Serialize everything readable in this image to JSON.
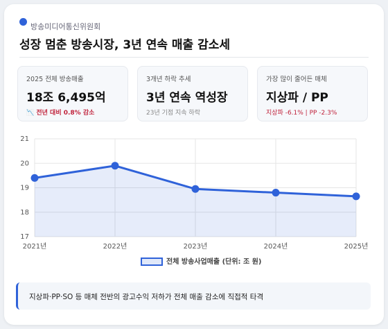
{
  "header": {
    "org": "방송미디어통신위원회",
    "title": "성장 멈춘 방송시장, 3년 연속 매출 감소세"
  },
  "stats": [
    {
      "label": "2025 전체 방송매출",
      "value": "18조 6,495억",
      "note": "📉 전년 대비 0.8% 감소"
    },
    {
      "label": "3개년 하락 추세",
      "value": "3년 연속 역성장",
      "note": "23년 기점 지속 하락"
    },
    {
      "label": "가장 많이 줄어든 매체",
      "value": "지상파 / PP",
      "note": "지상파 -6.1% | PP -2.3%"
    }
  ],
  "chart_data": {
    "type": "line",
    "categories": [
      "2021년",
      "2022년",
      "2023년",
      "2024년",
      "2025년"
    ],
    "series": [
      {
        "name": "전체 방송사업매출 (단위: 조 원)",
        "color": "#2f62d9",
        "values": [
          19.4,
          19.9,
          18.95,
          18.8,
          18.65
        ]
      }
    ],
    "ylim": [
      17,
      21
    ],
    "yticks": [
      17,
      18,
      19,
      20,
      21
    ],
    "grid": true,
    "fill": true
  },
  "footer_note": "지상파·PP·SO 등 매체 전반의 광고수익 저하가 전체 매출 감소에 직접적 타격"
}
